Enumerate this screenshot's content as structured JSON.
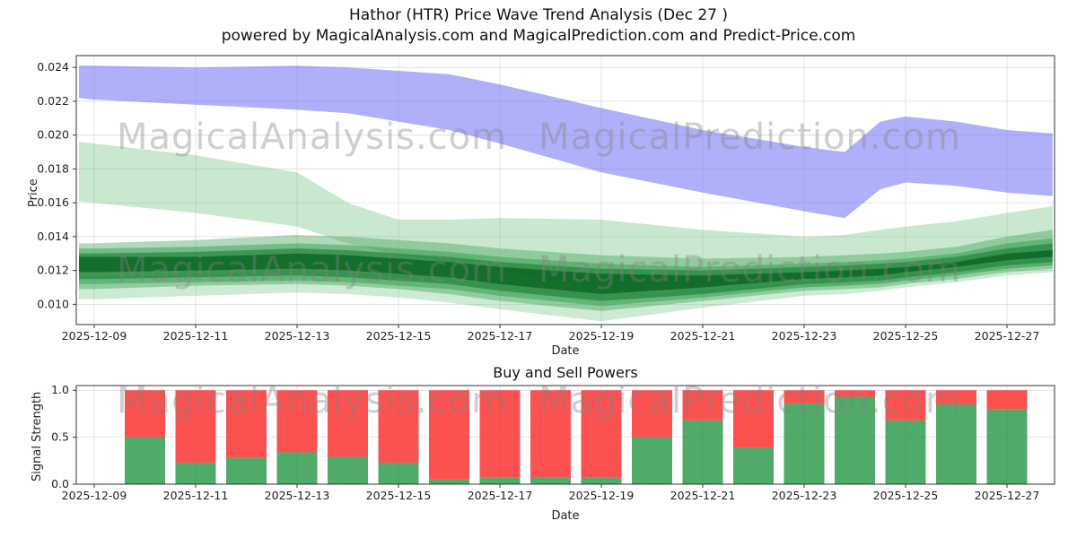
{
  "header": {
    "title_line1": "Hathor (HTR) Price Wave Trend Analysis (Dec 27 )",
    "title_line2": "powered by MagicalAnalysis.com and MagicalPrediction.com and Predict-Price.com"
  },
  "watermarks": {
    "analysis": "MagicalAnalysis.com",
    "prediction": "MagicalPrediction.com"
  },
  "chart_data": [
    {
      "type": "area",
      "title": "",
      "xlabel": "Date",
      "ylabel": "Price",
      "ylim": [
        0.0088,
        0.0247
      ],
      "grid": true,
      "y_ticks": [
        0.01,
        0.012,
        0.014,
        0.016,
        0.018,
        0.02,
        0.022,
        0.024
      ],
      "y_tick_labels": [
        "0.010",
        "0.012",
        "0.014",
        "0.016",
        "0.018",
        "0.020",
        "0.022",
        "0.024"
      ],
      "x_tick_days": [
        0,
        2,
        4,
        6,
        8,
        10,
        12,
        14,
        16,
        18
      ],
      "x_tick_labels": [
        "2025-12-09",
        "2025-12-11",
        "2025-12-13",
        "2025-12-15",
        "2025-12-17",
        "2025-12-19",
        "2025-12-21",
        "2025-12-23",
        "2025-12-25",
        "2025-12-27"
      ],
      "band_days": [
        -0.3,
        0,
        2,
        4,
        5,
        6,
        7,
        8,
        10,
        12,
        14,
        14.8,
        15.5,
        16,
        17,
        18,
        18.9
      ],
      "bands": [
        {
          "name": "upper-forecast-band-blue",
          "color": "rgba(112,112,245,0.55)",
          "upper": [
            0.0241,
            0.0241,
            0.024,
            0.0241,
            0.024,
            0.0238,
            0.0236,
            0.023,
            0.0216,
            0.0203,
            0.0193,
            0.019,
            0.0208,
            0.0211,
            0.0208,
            0.0203,
            0.0201
          ],
          "lower": [
            0.0222,
            0.0221,
            0.0218,
            0.0215,
            0.0213,
            0.0208,
            0.0203,
            0.0195,
            0.0178,
            0.0166,
            0.0155,
            0.0151,
            0.0168,
            0.0172,
            0.017,
            0.0166,
            0.0164
          ]
        },
        {
          "name": "outer-trend-band-light-green-top",
          "color": "rgba(90,185,110,0.32)",
          "upper": [
            0.0196,
            0.0195,
            0.0188,
            0.0178,
            0.016,
            0.015,
            0.015,
            0.0151,
            0.015,
            0.0144,
            0.014,
            0.0141,
            0.0144,
            0.0146,
            0.0149,
            0.0154,
            0.0158
          ],
          "lower": [
            0.0161,
            0.016,
            0.0154,
            0.0146,
            0.0136,
            0.0129,
            0.0125,
            0.012,
            0.0109,
            0.0107,
            0.011,
            0.0111,
            0.0113,
            0.0115,
            0.0118,
            0.0121,
            0.0123
          ]
        },
        {
          "name": "outer-trend-band-light-green-bottom",
          "color": "rgba(90,185,110,0.30)",
          "upper": [
            0.0116,
            0.0116,
            0.0118,
            0.012,
            0.0119,
            0.0118,
            0.0116,
            0.0113,
            0.0106,
            0.0108,
            0.0113,
            0.0114,
            0.0116,
            0.0118,
            0.0121,
            0.0125,
            0.0127
          ],
          "lower": [
            0.0103,
            0.0103,
            0.0105,
            0.0107,
            0.0106,
            0.0104,
            0.0101,
            0.0097,
            0.009,
            0.0098,
            0.0105,
            0.0106,
            0.0108,
            0.011,
            0.0113,
            0.0117,
            0.0119
          ]
        },
        {
          "name": "mid-trend-band-a",
          "color": "rgba(55,160,80,0.40)",
          "upper": [
            0.0136,
            0.0136,
            0.0138,
            0.0141,
            0.014,
            0.0138,
            0.0136,
            0.0133,
            0.0129,
            0.0127,
            0.0128,
            0.0129,
            0.013,
            0.0131,
            0.0134,
            0.014,
            0.0144
          ],
          "lower": [
            0.0109,
            0.0109,
            0.0111,
            0.0112,
            0.0111,
            0.0109,
            0.0106,
            0.0102,
            0.0096,
            0.0102,
            0.0108,
            0.0109,
            0.011,
            0.0112,
            0.0115,
            0.0119,
            0.0121
          ]
        },
        {
          "name": "mid-trend-band-b",
          "color": "rgba(45,150,70,0.45)",
          "upper": [
            0.0133,
            0.0133,
            0.0134,
            0.0136,
            0.0135,
            0.0133,
            0.0131,
            0.0128,
            0.0124,
            0.0122,
            0.0124,
            0.0125,
            0.0126,
            0.0127,
            0.013,
            0.0136,
            0.0139
          ],
          "lower": [
            0.0112,
            0.0112,
            0.0113,
            0.0114,
            0.0113,
            0.0111,
            0.0109,
            0.0105,
            0.0099,
            0.0104,
            0.011,
            0.0111,
            0.0112,
            0.0114,
            0.0117,
            0.0121,
            0.0123
          ]
        },
        {
          "name": "inner-trend-band-dark",
          "color": "rgba(25,125,50,0.60)",
          "upper": [
            0.013,
            0.013,
            0.0131,
            0.0133,
            0.0132,
            0.013,
            0.0128,
            0.0125,
            0.0121,
            0.012,
            0.0122,
            0.0123,
            0.0124,
            0.0125,
            0.0128,
            0.0133,
            0.0136
          ],
          "lower": [
            0.0115,
            0.0115,
            0.0116,
            0.0117,
            0.0116,
            0.0114,
            0.0112,
            0.0108,
            0.0102,
            0.0106,
            0.0112,
            0.0113,
            0.0114,
            0.0116,
            0.0119,
            0.0123,
            0.0125
          ]
        },
        {
          "name": "core-trend-band-darkest",
          "color": "rgba(10,100,35,0.80)",
          "upper": [
            0.0128,
            0.0128,
            0.0128,
            0.013,
            0.0129,
            0.0127,
            0.0125,
            0.0122,
            0.0118,
            0.0117,
            0.0119,
            0.012,
            0.0121,
            0.0122,
            0.0125,
            0.013,
            0.0132
          ],
          "lower": [
            0.0119,
            0.0119,
            0.012,
            0.0121,
            0.012,
            0.0118,
            0.0116,
            0.0112,
            0.0106,
            0.011,
            0.0115,
            0.0116,
            0.0117,
            0.0119,
            0.0122,
            0.0126,
            0.0128
          ]
        }
      ]
    },
    {
      "type": "bar",
      "title": "Buy and Sell Powers",
      "xlabel": "Date",
      "ylabel": "Signal Strength",
      "ylim": [
        0,
        1.05
      ],
      "grid": true,
      "legend": "none",
      "y_ticks": [
        0,
        0.5,
        1.0
      ],
      "y_tick_labels": [
        "0.0",
        "0.5",
        "1.0"
      ],
      "x_tick_days": [
        0,
        2,
        4,
        6,
        8,
        10,
        12,
        14,
        16,
        18
      ],
      "x_tick_labels": [
        "2025-12-09",
        "2025-12-11",
        "2025-12-13",
        "2025-12-15",
        "2025-12-17",
        "2025-12-19",
        "2025-12-21",
        "2025-12-23",
        "2025-12-25",
        "2025-12-27"
      ],
      "bar_days": [
        1,
        2,
        3,
        4,
        5,
        6,
        7,
        8,
        9,
        10,
        11,
        12,
        13,
        14,
        15,
        16,
        17,
        18
      ],
      "bar_dates": [
        "2025-12-10",
        "2025-12-11",
        "2025-12-12",
        "2025-12-13",
        "2025-12-14",
        "2025-12-15",
        "2025-12-16",
        "2025-12-17",
        "2025-12-18",
        "2025-12-19",
        "2025-12-20",
        "2025-12-21",
        "2025-12-22",
        "2025-12-23",
        "2025-12-24",
        "2025-12-25",
        "2025-12-26",
        "2025-12-27"
      ],
      "series": [
        {
          "name": "buy-power",
          "color": "rgba(35,150,65,0.80)",
          "values": [
            0.5,
            0.23,
            0.28,
            0.34,
            0.29,
            0.23,
            0.05,
            0.07,
            0.07,
            0.07,
            0.5,
            0.68,
            0.39,
            0.86,
            0.93,
            0.68,
            0.85,
            0.8
          ]
        },
        {
          "name": "sell-power",
          "color": "rgba(250,50,50,0.85)",
          "values": [
            0.5,
            0.77,
            0.72,
            0.66,
            0.71,
            0.77,
            0.95,
            0.93,
            0.93,
            0.93,
            0.5,
            0.32,
            0.61,
            0.14,
            0.07,
            0.32,
            0.15,
            0.2
          ]
        }
      ]
    }
  ]
}
